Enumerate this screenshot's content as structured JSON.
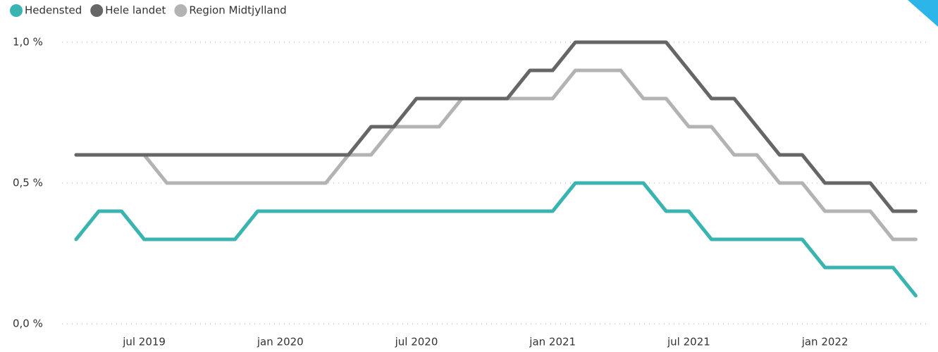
{
  "chart_data": {
    "type": "line",
    "categories": [
      null,
      null,
      null,
      "jul 2019",
      null,
      null,
      null,
      null,
      null,
      "jan 2020",
      null,
      null,
      null,
      null,
      null,
      "jul 2020",
      null,
      null,
      null,
      null,
      null,
      "jan 2021",
      null,
      null,
      null,
      null,
      null,
      "jul 2021",
      null,
      null,
      null,
      null,
      null,
      "jan 2022",
      null,
      null,
      null,
      null
    ],
    "series": [
      {
        "name": "Hedensted",
        "color": "#3ab4b0",
        "values": [
          0.3,
          0.4,
          0.4,
          0.3,
          0.3,
          0.3,
          0.3,
          0.3,
          0.4,
          0.4,
          0.4,
          0.4,
          0.4,
          0.4,
          0.4,
          0.4,
          0.4,
          0.4,
          0.4,
          0.4,
          0.4,
          0.4,
          0.5,
          0.5,
          0.5,
          0.5,
          0.4,
          0.4,
          0.3,
          0.3,
          0.3,
          0.3,
          0.3,
          0.2,
          0.2,
          0.2,
          0.2,
          0.1
        ]
      },
      {
        "name": "Hele landet",
        "color": "#666666",
        "values": [
          0.6,
          0.6,
          0.6,
          0.6,
          0.6,
          0.6,
          0.6,
          0.6,
          0.6,
          0.6,
          0.6,
          0.6,
          0.6,
          0.7,
          0.7,
          0.8,
          0.8,
          0.8,
          0.8,
          0.8,
          0.9,
          0.9,
          1.0,
          1.0,
          1.0,
          1.0,
          1.0,
          0.9,
          0.8,
          0.8,
          0.7,
          0.6,
          0.6,
          0.5,
          0.5,
          0.5,
          0.4,
          0.4
        ]
      },
      {
        "name": "Region Midtjylland",
        "color": "#b3b3b3",
        "values": [
          0.6,
          0.6,
          0.6,
          0.6,
          0.5,
          0.5,
          0.5,
          0.5,
          0.5,
          0.5,
          0.5,
          0.5,
          0.6,
          0.6,
          0.7,
          0.7,
          0.7,
          0.8,
          0.8,
          0.8,
          0.8,
          0.8,
          0.9,
          0.9,
          0.9,
          0.8,
          0.8,
          0.7,
          0.7,
          0.6,
          0.6,
          0.5,
          0.5,
          0.4,
          0.4,
          0.4,
          0.3,
          0.3
        ]
      }
    ],
    "ylim": [
      0,
      1.0
    ],
    "yticks": [
      {
        "value": 0,
        "label": "0,0 %"
      },
      {
        "value": 0.5,
        "label": "0,5 %"
      },
      {
        "value": 1.0,
        "label": "1,0 %"
      }
    ],
    "grid": true,
    "legend": "top-left"
  }
}
